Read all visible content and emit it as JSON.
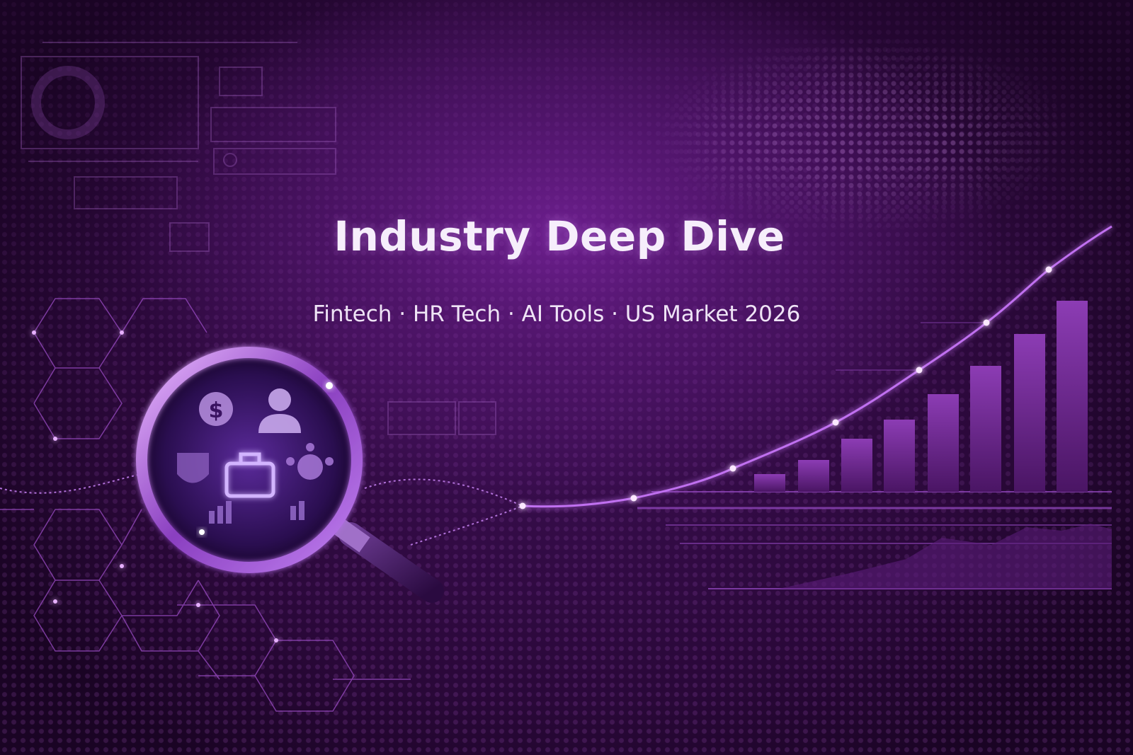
{
  "banner": {
    "title": "Industry Deep Dive",
    "subtitle": "Fintech · HR Tech · AI Tools · US Market 2026"
  },
  "colors": {
    "background": "#2a0839",
    "accent": "#b04fe0",
    "glow": "#f0c8ff",
    "text": "#f6eefb"
  },
  "icons": [
    "magnifying-glass-icon",
    "dollar-icon",
    "businessman-icon",
    "briefcase-icon",
    "gear-network-icon",
    "bar-chart-icon",
    "world-map-dots",
    "hexagon-network"
  ]
}
